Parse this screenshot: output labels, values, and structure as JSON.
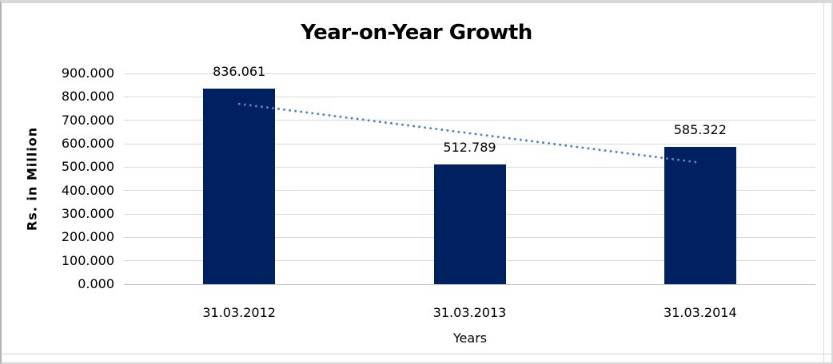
{
  "chart_data": {
    "type": "bar",
    "title": "Year-on-Year Growth",
    "xlabel": "Years",
    "ylabel": "Rs. in Million",
    "categories": [
      "31.03.2012",
      "31.03.2013",
      "31.03.2014"
    ],
    "values": [
      836.061,
      512.789,
      585.322
    ],
    "data_labels": [
      "836.061",
      "512.789",
      "585.322"
    ],
    "ylim": [
      0,
      900
    ],
    "ytick_step": 100,
    "ytick_labels": [
      "0.000",
      "100.000",
      "200.000",
      "300.000",
      "400.000",
      "500.000",
      "600.000",
      "700.000",
      "800.000",
      "900.000"
    ],
    "grid": true,
    "legend_position": "none",
    "bar_color": "#002060",
    "trendline": {
      "style": "dotted",
      "color": "#4A86C8",
      "start_value": 770,
      "end_value": 519
    }
  }
}
